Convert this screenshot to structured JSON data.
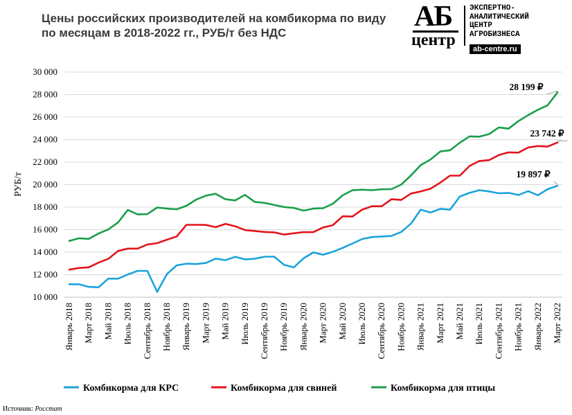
{
  "header": {
    "title": "Цены российских производителей на комбикорма по виду по месяцам в 2018-2022 гг., РУБ/т без НДС"
  },
  "logo": {
    "mark_top": "АБ",
    "mark_bottom": "центр",
    "text_lines": [
      "ЭКСПЕРТНО-",
      "АНАЛИТИЧЕСКИЙ",
      "ЦЕНТР",
      "АГРОБИЗНЕСА"
    ],
    "url": "ab-centre.ru"
  },
  "source": {
    "label": "Источник:",
    "value": "Росстат"
  },
  "chart_data": {
    "type": "line",
    "ylabel": "РУБ/т",
    "ylim": [
      10000,
      30000
    ],
    "yticks": [
      10000,
      12000,
      14000,
      16000,
      18000,
      20000,
      22000,
      24000,
      26000,
      28000,
      30000
    ],
    "ytick_labels": [
      "10 000",
      "12 000",
      "14 000",
      "16 000",
      "18 000",
      "20 000",
      "22 000",
      "24 000",
      "26 000",
      "28 000",
      "30 000"
    ],
    "x": [
      "Январь 2018",
      "Февраль 2018",
      "Март 2018",
      "Апрель 2018",
      "Май 2018",
      "Июнь 2018",
      "Июль 2018",
      "Август 2018",
      "Сентябрь 2018",
      "Октябрь 2018",
      "Ноябрь 2018",
      "Декабрь 2018",
      "Январь 2019",
      "Февраль 2019",
      "Март 2019",
      "Апрель 2019",
      "Май 2019",
      "Июнь 2019",
      "Июль 2019",
      "Август 2019",
      "Сентябрь 2019",
      "Октябрь 2019",
      "Ноябрь 2019",
      "Декабрь 2019",
      "Январь 2020",
      "Февраль 2020",
      "Март 2020",
      "Апрель 2020",
      "Май 2020",
      "Июнь 2020",
      "Июль 2020",
      "Август 2020",
      "Сентябрь 2020",
      "Октябрь 2020",
      "Ноябрь 2020",
      "Декабрь 2020",
      "Январь 2021",
      "Февраль 2021",
      "Март 2021",
      "Апрель 2021",
      "Май 2021",
      "Июнь 2021",
      "Июль 2021",
      "Август 2021",
      "Сентябрь 2021",
      "Октябрь 2021",
      "Ноябрь 2021",
      "Декабрь 2021",
      "Январь 2022",
      "Февраль 2022",
      "Март 2022"
    ],
    "xtick_labels": [
      "Январь 2018",
      "Март 2018",
      "Май 2018",
      "Июль 2018",
      "Сентябрь 2018",
      "Ноябрь 2018",
      "Январь 2019",
      "Март 2019",
      "Май 2019",
      "Июль 2019",
      "Сентябрь 2019",
      "Ноябрь 2019",
      "Январь 2020",
      "Март 2020",
      "Май 2020",
      "Июль 2020",
      "Сентябрь 2020",
      "Ноябрь 2020",
      "Январь 2021",
      "Март 2021",
      "Май 2021",
      "Июль 2021",
      "Сентябрь 2021",
      "Ноябрь 2021",
      "Январь 2022",
      "Март 2022"
    ],
    "grid": true,
    "legend_position": "bottom",
    "series": [
      {
        "name": "Комбикорма для КРС",
        "color": "#1aa3db",
        "values": [
          11150,
          11150,
          10920,
          10880,
          11650,
          11650,
          12020,
          12340,
          12340,
          10480,
          12050,
          12830,
          12980,
          12950,
          13040,
          13430,
          13290,
          13590,
          13360,
          13420,
          13600,
          13600,
          12880,
          12650,
          13460,
          13980,
          13770,
          14040,
          14380,
          14770,
          15170,
          15340,
          15400,
          15440,
          15800,
          16540,
          17780,
          17520,
          17850,
          17780,
          18950,
          19270,
          19510,
          19400,
          19230,
          19270,
          19080,
          19420,
          19060,
          19600,
          19897
        ],
        "end_label": "19 897 ₽"
      },
      {
        "name": "Комбикорма для свиней",
        "color": "#e3141c",
        "values": [
          12450,
          12600,
          12660,
          13070,
          13410,
          14110,
          14320,
          14320,
          14680,
          14800,
          15110,
          15390,
          16430,
          16430,
          16420,
          16220,
          16520,
          16300,
          15960,
          15880,
          15800,
          15760,
          15560,
          15680,
          15780,
          15780,
          16200,
          16400,
          17190,
          17160,
          17780,
          18080,
          18080,
          18700,
          18640,
          19210,
          19400,
          19640,
          20180,
          20800,
          20800,
          21660,
          22100,
          22180,
          22630,
          22870,
          22840,
          23300,
          23430,
          23380,
          23742
        ],
        "end_label": "23 742 ₽"
      },
      {
        "name": "Комбикорма для птицы",
        "color": "#1a9e4a",
        "values": [
          15000,
          15240,
          15180,
          15660,
          16020,
          16640,
          17750,
          17360,
          17380,
          17970,
          17870,
          17810,
          18120,
          18670,
          19020,
          19190,
          18700,
          18600,
          19090,
          18470,
          18380,
          18190,
          18010,
          17930,
          17690,
          17870,
          17910,
          18300,
          19050,
          19500,
          19550,
          19510,
          19590,
          19600,
          20000,
          20820,
          21740,
          22230,
          22950,
          23050,
          23720,
          24290,
          24260,
          24490,
          25080,
          24970,
          25640,
          26170,
          26650,
          27050,
          28199
        ],
        "end_label": "28 199 ₽"
      }
    ]
  }
}
